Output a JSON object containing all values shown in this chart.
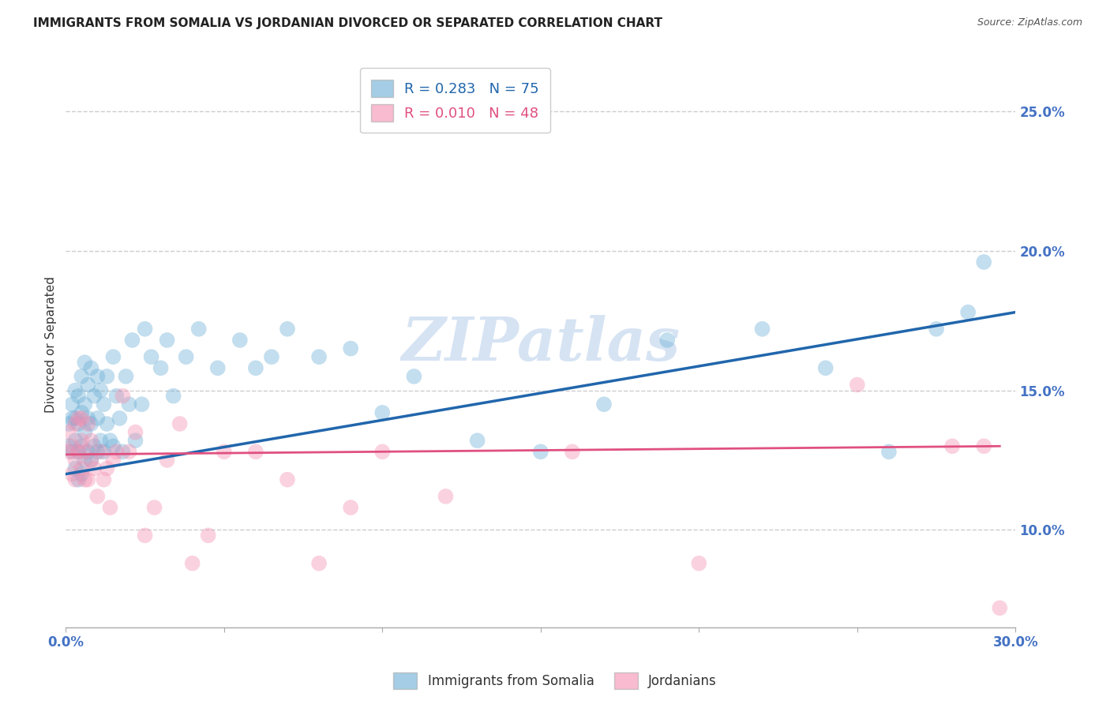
{
  "title": "IMMIGRANTS FROM SOMALIA VS JORDANIAN DIVORCED OR SEPARATED CORRELATION CHART",
  "source": "Source: ZipAtlas.com",
  "ylabel": "Divorced or Separated",
  "xlim": [
    0.0,
    0.3
  ],
  "ylim": [
    0.065,
    0.268
  ],
  "xtick_positions": [
    0.0,
    0.05,
    0.1,
    0.15,
    0.2,
    0.25,
    0.3
  ],
  "xtick_labels": [
    "0.0%",
    "",
    "",
    "",
    "",
    "",
    "30.0%"
  ],
  "yticks_right": [
    0.1,
    0.15,
    0.2,
    0.25
  ],
  "watermark": "ZIPatlas",
  "somalia_x": [
    0.001,
    0.001,
    0.002,
    0.002,
    0.002,
    0.003,
    0.003,
    0.003,
    0.003,
    0.004,
    0.004,
    0.004,
    0.004,
    0.005,
    0.005,
    0.005,
    0.005,
    0.006,
    0.006,
    0.006,
    0.006,
    0.007,
    0.007,
    0.007,
    0.008,
    0.008,
    0.008,
    0.009,
    0.009,
    0.01,
    0.01,
    0.01,
    0.011,
    0.011,
    0.012,
    0.012,
    0.013,
    0.013,
    0.014,
    0.015,
    0.015,
    0.016,
    0.017,
    0.018,
    0.019,
    0.02,
    0.021,
    0.022,
    0.024,
    0.025,
    0.027,
    0.03,
    0.032,
    0.034,
    0.038,
    0.042,
    0.048,
    0.055,
    0.06,
    0.065,
    0.07,
    0.08,
    0.09,
    0.1,
    0.11,
    0.13,
    0.15,
    0.17,
    0.19,
    0.22,
    0.24,
    0.26,
    0.275,
    0.285,
    0.29
  ],
  "somalia_y": [
    0.13,
    0.138,
    0.128,
    0.14,
    0.145,
    0.122,
    0.132,
    0.14,
    0.15,
    0.118,
    0.128,
    0.138,
    0.148,
    0.12,
    0.13,
    0.142,
    0.155,
    0.125,
    0.135,
    0.145,
    0.16,
    0.128,
    0.14,
    0.152,
    0.125,
    0.138,
    0.158,
    0.13,
    0.148,
    0.128,
    0.14,
    0.155,
    0.132,
    0.15,
    0.128,
    0.145,
    0.138,
    0.155,
    0.132,
    0.13,
    0.162,
    0.148,
    0.14,
    0.128,
    0.155,
    0.145,
    0.168,
    0.132,
    0.145,
    0.172,
    0.162,
    0.158,
    0.168,
    0.148,
    0.162,
    0.172,
    0.158,
    0.168,
    0.158,
    0.162,
    0.172,
    0.162,
    0.165,
    0.142,
    0.155,
    0.132,
    0.128,
    0.145,
    0.168,
    0.172,
    0.158,
    0.128,
    0.172,
    0.178,
    0.196
  ],
  "jordan_x": [
    0.001,
    0.001,
    0.002,
    0.002,
    0.003,
    0.003,
    0.003,
    0.004,
    0.004,
    0.005,
    0.005,
    0.005,
    0.006,
    0.006,
    0.007,
    0.007,
    0.008,
    0.008,
    0.009,
    0.01,
    0.011,
    0.012,
    0.013,
    0.014,
    0.015,
    0.016,
    0.018,
    0.02,
    0.022,
    0.025,
    0.028,
    0.032,
    0.036,
    0.04,
    0.045,
    0.05,
    0.06,
    0.07,
    0.08,
    0.09,
    0.1,
    0.12,
    0.16,
    0.2,
    0.25,
    0.28,
    0.29,
    0.295
  ],
  "jordan_y": [
    0.128,
    0.135,
    0.13,
    0.12,
    0.138,
    0.125,
    0.118,
    0.14,
    0.128,
    0.122,
    0.132,
    0.14,
    0.118,
    0.128,
    0.118,
    0.138,
    0.125,
    0.132,
    0.122,
    0.112,
    0.128,
    0.118,
    0.122,
    0.108,
    0.125,
    0.128,
    0.148,
    0.128,
    0.135,
    0.098,
    0.108,
    0.125,
    0.138,
    0.088,
    0.098,
    0.128,
    0.128,
    0.118,
    0.088,
    0.108,
    0.128,
    0.112,
    0.128,
    0.088,
    0.152,
    0.13,
    0.13,
    0.072
  ],
  "blue_line_x": [
    0.0,
    0.3
  ],
  "blue_line_y": [
    0.12,
    0.178
  ],
  "pink_line_x": [
    0.0,
    0.295
  ],
  "pink_line_y": [
    0.127,
    0.13
  ],
  "blue_color": "#6aaed6",
  "pink_color": "#f48fb1",
  "blue_line_color": "#2166ac",
  "pink_line_color": "#e05080",
  "background_color": "#ffffff",
  "grid_color": "#cccccc",
  "title_color": "#222222",
  "source_color": "#555555",
  "right_axis_color": "#4472C4",
  "watermark_color": "#c5d8ee"
}
